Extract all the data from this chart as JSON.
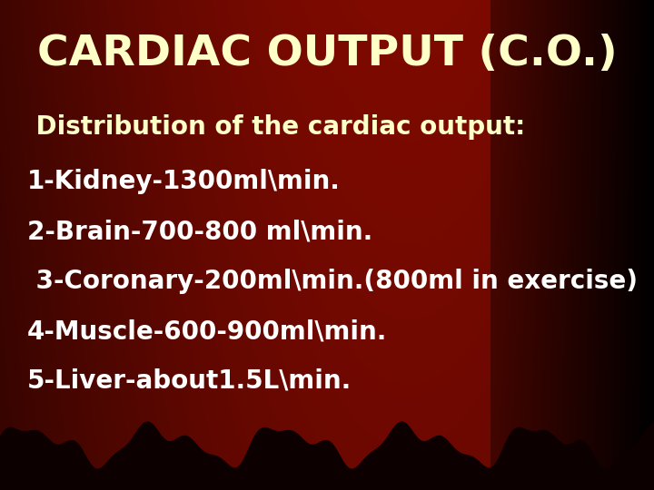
{
  "title": "CARDIAC OUTPUT (C.O.)",
  "title_color": "#FFFFC8",
  "title_fontsize": 34,
  "title_weight": "bold",
  "subtitle": " Distribution of the cardiac output:",
  "subtitle_color": "#FFFFC8",
  "subtitle_fontsize": 20,
  "subtitle_weight": "bold",
  "lines": [
    "1-Kidney-1300ml\\min.",
    "2-Brain-700-800 ml\\min.",
    " 3-Coronary-200ml\\min.(800ml in exercise)",
    "4-Muscle-600-900ml\\min.",
    "5-Liver-about1.5L\\min."
  ],
  "line_color": "#FFFFFF",
  "line_fontsize": 20,
  "line_weight": "bold",
  "figsize": [
    7.2,
    5.4
  ],
  "dpi": 100
}
